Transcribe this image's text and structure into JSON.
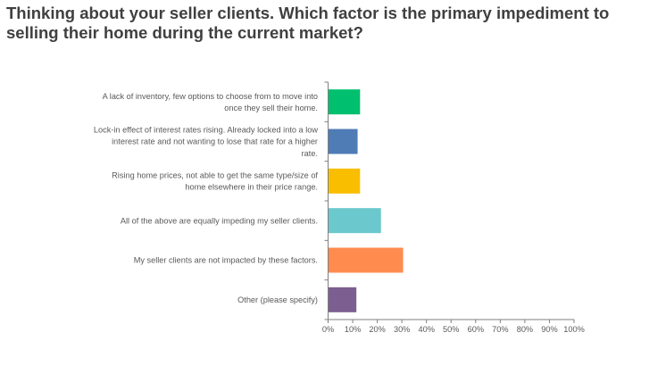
{
  "chart_data": {
    "type": "bar",
    "orientation": "horizontal",
    "title": "Thinking about your seller clients. Which factor is the primary impediment to selling their home during the current market?",
    "categories": [
      [
        "A lack of inventory, few options to choose from to move into",
        "once they sell their home."
      ],
      [
        "Lock-in effect of interest rates rising. Already locked into a low",
        "interest rate and not wanting to lose that rate for a higher",
        "rate."
      ],
      [
        "Rising home prices, not able to get the same type/size of",
        "home elsewhere in their price range."
      ],
      [
        "All of the above are equally impeding my seller clients."
      ],
      [
        "My seller clients are not impacted by these factors."
      ],
      [
        "Other (please specify)"
      ]
    ],
    "values": [
      13,
      12,
      13,
      21.5,
      30.5,
      11.5
    ],
    "colors": [
      "#00BF6F",
      "#507CB6",
      "#F9BE00",
      "#6BC8CD",
      "#FF8B4F",
      "#7D5E90"
    ],
    "xlim": [
      0,
      100
    ],
    "xticks": [
      "0%",
      "10%",
      "20%",
      "30%",
      "40%",
      "50%",
      "60%",
      "70%",
      "80%",
      "90%",
      "100%"
    ],
    "grid": false,
    "legend": "none"
  }
}
